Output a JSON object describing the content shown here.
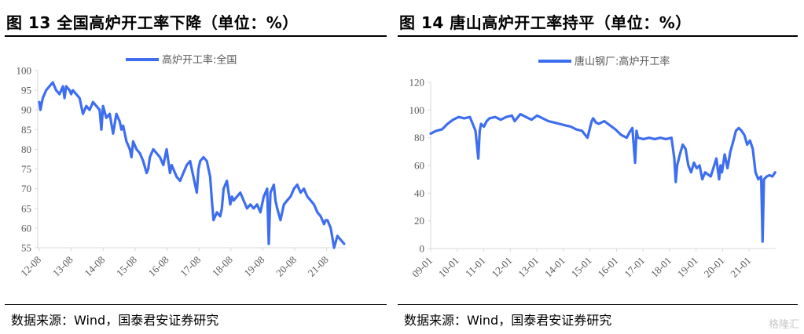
{
  "panels": [
    {
      "title": "图 13  全国高炉开工率下降（单位：%）",
      "source": "数据来源：Wind，国泰君安证券研究"
    },
    {
      "title": "图 14  唐山高炉开工率持平（单位：%）",
      "source": "数据来源：Wind，国泰君安证券研究"
    }
  ],
  "watermark": "格隆汇",
  "colors": {
    "line": "#3d6ef0",
    "axis": "#d9d9d9",
    "text": "#595959"
  },
  "chart_data": [
    {
      "type": "line",
      "legend_position": "top",
      "ylim": [
        55,
        100
      ],
      "y_ticks": [
        55,
        60,
        65,
        70,
        75,
        80,
        85,
        90,
        95,
        100
      ],
      "x_ticks": [
        "12-08",
        "13-08",
        "14-08",
        "15-08",
        "16-08",
        "17-08",
        "18-08",
        "19-08",
        "20-08",
        "21-08"
      ],
      "series": [
        {
          "name": "高炉开工率:全国",
          "x": [
            2012.6,
            2012.63,
            2012.7,
            2012.8,
            2012.9,
            2013.0,
            2013.1,
            2013.2,
            2013.3,
            2013.35,
            2013.4,
            2013.5,
            2013.55,
            2013.6,
            2013.7,
            2013.8,
            2013.9,
            2014.0,
            2014.1,
            2014.2,
            2014.3,
            2014.4,
            2014.45,
            2014.5,
            2014.6,
            2014.7,
            2014.8,
            2014.9,
            2015.0,
            2015.05,
            2015.1,
            2015.2,
            2015.3,
            2015.35,
            2015.4,
            2015.5,
            2015.6,
            2015.7,
            2015.8,
            2015.85,
            2015.9,
            2016.0,
            2016.1,
            2016.2,
            2016.3,
            2016.4,
            2016.5,
            2016.55,
            2016.6,
            2016.7,
            2016.8,
            2016.9,
            2017.0,
            2017.1,
            2017.2,
            2017.3,
            2017.35,
            2017.4,
            2017.5,
            2017.6,
            2017.7,
            2017.75,
            2017.8,
            2017.9,
            2018.0,
            2018.05,
            2018.1,
            2018.2,
            2018.3,
            2018.35,
            2018.4,
            2018.5,
            2018.6,
            2018.7,
            2018.8,
            2018.9,
            2019.0,
            2019.1,
            2019.2,
            2019.3,
            2019.4,
            2019.45,
            2019.5,
            2019.6,
            2019.65,
            2019.7,
            2019.8,
            2019.9,
            2020.0,
            2020.1,
            2020.2,
            2020.3,
            2020.4,
            2020.5,
            2020.6,
            2020.7,
            2020.8,
            2020.9,
            2021.0,
            2021.1,
            2021.15,
            2021.2,
            2021.3,
            2021.4,
            2021.5,
            2021.6,
            2021.7
          ],
          "values": [
            92,
            90,
            93,
            95,
            96,
            97,
            95,
            94,
            96,
            93,
            96,
            95,
            94,
            95,
            94,
            93,
            89,
            91,
            90,
            92,
            91,
            90,
            85,
            91,
            88,
            89,
            84,
            89,
            87,
            85,
            86,
            82,
            80,
            78,
            82,
            80,
            79,
            77,
            74,
            75,
            78,
            80,
            79,
            78,
            76,
            80,
            74,
            76,
            75,
            73,
            72,
            74,
            76,
            77,
            73,
            69,
            75,
            77,
            78,
            77,
            73,
            67,
            62,
            64,
            63,
            65,
            70,
            72,
            66,
            68,
            67,
            68,
            69,
            67,
            65,
            66,
            65,
            66,
            64,
            68,
            70,
            56,
            69,
            71,
            67,
            65,
            62,
            66,
            67,
            68,
            70,
            71,
            69,
            70,
            68,
            67,
            66,
            64,
            63,
            61,
            62,
            62,
            60,
            55,
            58,
            57,
            56
          ]
        }
      ]
    },
    {
      "type": "line",
      "legend_position": "top",
      "ylim": [
        0,
        120
      ],
      "y_ticks": [
        0,
        20,
        40,
        60,
        80,
        100,
        120
      ],
      "x_ticks": [
        "09-01",
        "10-01",
        "11-01",
        "12-01",
        "13-01",
        "14-01",
        "15-01",
        "16-01",
        "17-01",
        "18-01",
        "19-01",
        "20-01",
        "21-01"
      ],
      "series": [
        {
          "name": "唐山钢厂:高炉开工率",
          "x": [
            2009.0,
            2009.2,
            2009.4,
            2009.6,
            2009.8,
            2010.0,
            2010.2,
            2010.4,
            2010.6,
            2010.7,
            2010.75,
            2010.8,
            2010.9,
            2011.0,
            2011.1,
            2011.3,
            2011.5,
            2011.7,
            2011.9,
            2012.0,
            2012.2,
            2012.4,
            2012.6,
            2012.8,
            2013.0,
            2013.2,
            2013.4,
            2013.6,
            2013.8,
            2014.0,
            2014.2,
            2014.4,
            2014.6,
            2014.7,
            2014.75,
            2014.8,
            2014.9,
            2015.0,
            2015.2,
            2015.4,
            2015.6,
            2015.8,
            2016.0,
            2016.1,
            2016.2,
            2016.3,
            2016.35,
            2016.4,
            2016.6,
            2016.8,
            2017.0,
            2017.2,
            2017.4,
            2017.6,
            2017.7,
            2017.75,
            2017.8,
            2017.9,
            2018.0,
            2018.1,
            2018.2,
            2018.3,
            2018.4,
            2018.5,
            2018.6,
            2018.7,
            2018.8,
            2019.0,
            2019.2,
            2019.3,
            2019.35,
            2019.4,
            2019.5,
            2019.6,
            2019.7,
            2019.8,
            2019.9,
            2020.0,
            2020.1,
            2020.2,
            2020.3,
            2020.4,
            2020.5,
            2020.6,
            2020.7,
            2020.8,
            2020.85,
            2020.9,
            2021.0,
            2021.1,
            2021.2,
            2021.3
          ],
          "values": [
            83,
            85,
            86,
            90,
            93,
            95,
            94,
            95,
            85,
            65,
            85,
            90,
            88,
            92,
            94,
            95,
            93,
            95,
            96,
            92,
            97,
            95,
            93,
            96,
            94,
            92,
            91,
            90,
            89,
            88,
            86,
            85,
            80,
            88,
            92,
            94,
            91,
            90,
            92,
            89,
            86,
            82,
            80,
            84,
            87,
            62,
            85,
            80,
            79,
            80,
            79,
            80,
            79,
            80,
            65,
            48,
            60,
            68,
            75,
            72,
            60,
            55,
            62,
            58,
            60,
            50,
            55,
            52,
            65,
            50,
            60,
            55,
            68,
            58,
            70,
            77,
            85,
            87,
            85,
            82,
            75,
            78,
            72,
            55,
            50,
            52,
            5,
            50,
            52,
            53,
            52,
            55
          ]
        }
      ]
    }
  ]
}
